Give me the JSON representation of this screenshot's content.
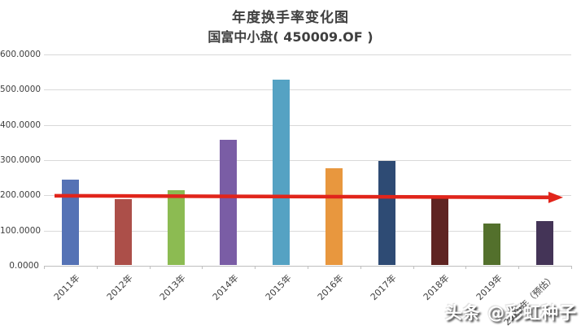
{
  "header": {
    "title": "年度换手率变化图",
    "subtitle": "国富中小盘( 450009.OF )"
  },
  "chart_data": {
    "type": "bar",
    "title": "年度换手率变化图",
    "subtitle": "国富中小盘( 450009.OF )",
    "categories": [
      "2011年",
      "2012年",
      "2013年",
      "2014年",
      "2015年",
      "2016年",
      "2017年",
      "2018年",
      "2019年",
      "2020年（预估）"
    ],
    "values": [
      245,
      190,
      214,
      358,
      528,
      276,
      297,
      195,
      120,
      127
    ],
    "bar_colors": [
      "#5572B5",
      "#AC4F49",
      "#8CBB52",
      "#7A5DA5",
      "#55A2C3",
      "#E8973E",
      "#2E4B74",
      "#5F2422",
      "#53702C",
      "#443457"
    ],
    "ylabel": "",
    "xlabel": "",
    "ylim": [
      0,
      600
    ],
    "y_ticks": [
      "0.0000",
      "100.0000",
      "200.0000",
      "300.0000",
      "400.0000",
      "500.0000",
      "600.0000"
    ],
    "y_tick_values": [
      0,
      100,
      200,
      300,
      400,
      500,
      600
    ],
    "grid": true,
    "legend": "none",
    "reference_line": {
      "value": 200,
      "color": "#E1251B",
      "style": "horizontal-arrow-right"
    }
  },
  "watermark": {
    "text": "头条 @彩虹种子"
  }
}
